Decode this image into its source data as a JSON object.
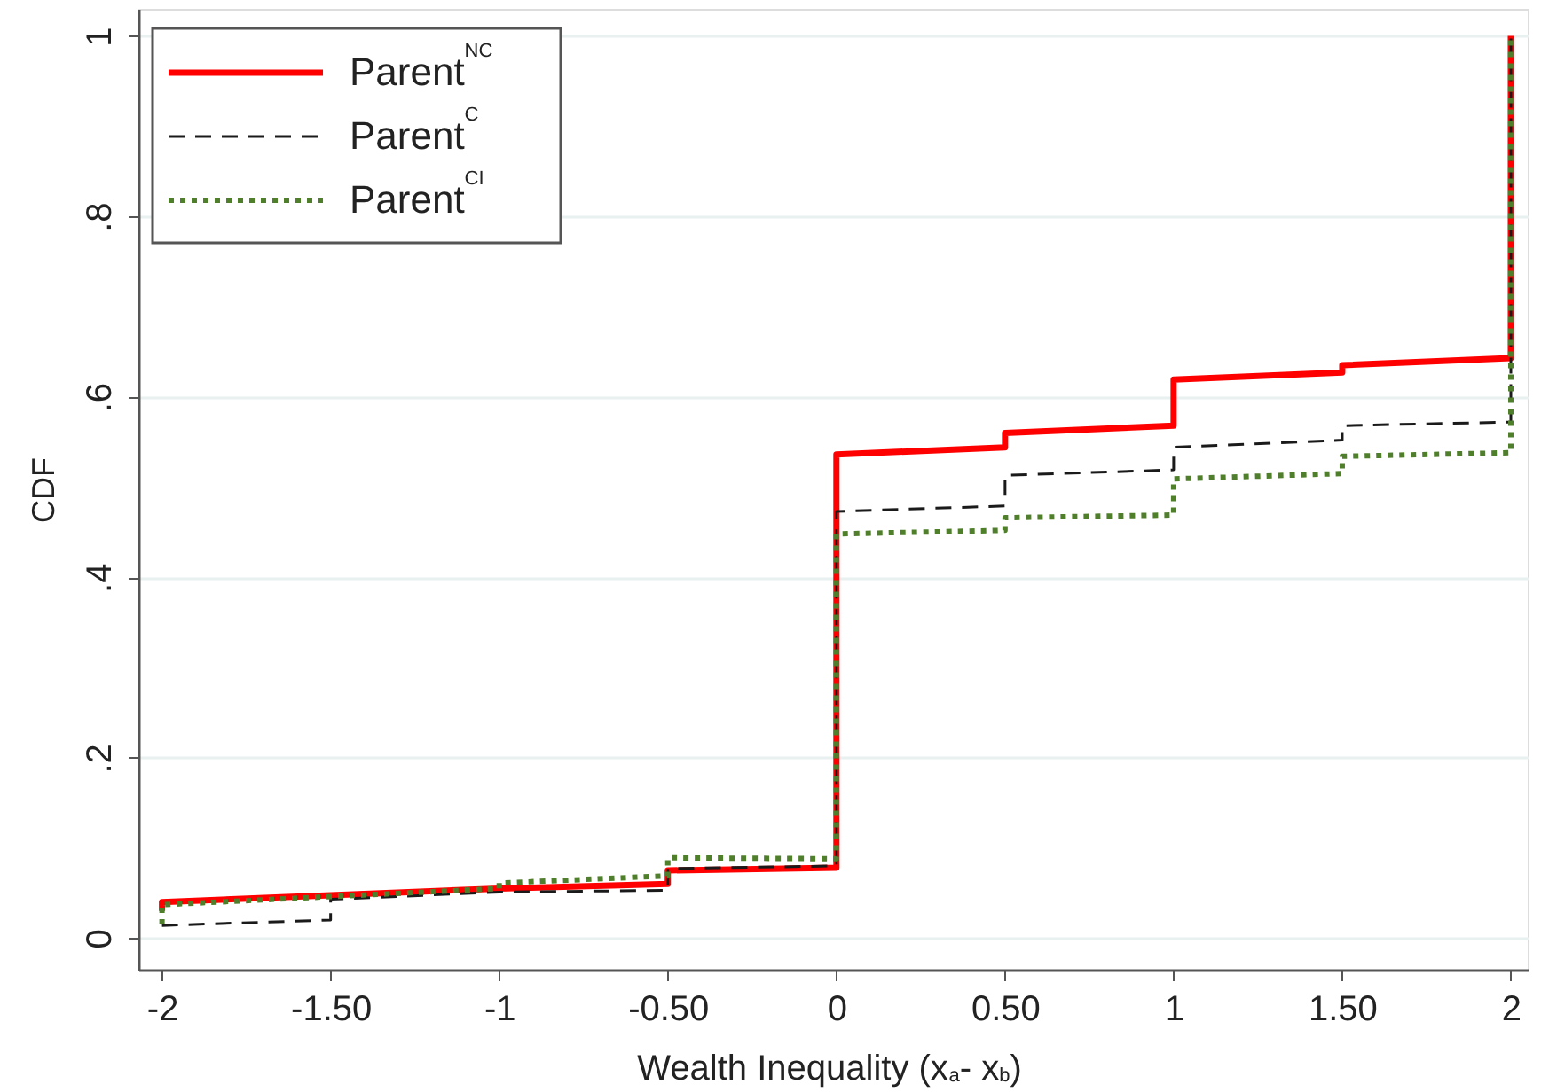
{
  "chart_data": {
    "type": "line",
    "xlabel": "Wealth Inequality (x$_{a}$- x$_{b}$)",
    "ylabel": "CDF",
    "xlim": [
      -2.07,
      2.05
    ],
    "ylim": [
      -0.035,
      1.03
    ],
    "xticks": [
      -2,
      {
        "value": -1.5,
        "label": "-1.50"
      },
      -1,
      {
        "value": -0.5,
        "label": "-0.50"
      },
      0,
      {
        "value": 0.5,
        "label": "0.50"
      },
      1,
      {
        "value": 1.5,
        "label": "1.50"
      },
      2
    ],
    "yticks": [
      0,
      {
        "value": 0.2,
        "label": ".2"
      },
      {
        "value": 0.4,
        "label": ".4"
      },
      {
        "value": 0.6,
        "label": ".6"
      },
      {
        "value": 0.8,
        "label": ".8"
      },
      1
    ],
    "grid": "y",
    "legend": "top left",
    "marker": "none",
    "series": [
      {
        "name": "Parent$^{NC}$",
        "color": "#ff0000",
        "line_style": "solid",
        "x": [
          -2,
          -2,
          -1,
          -0.5,
          -0.5,
          0,
          0,
          0.5,
          0.5,
          1,
          1,
          1.5,
          1.5,
          2,
          2
        ],
        "values": [
          0.03,
          0.04,
          0.055,
          0.06,
          0.075,
          0.078,
          0.536,
          0.544,
          0.56,
          0.568,
          0.619,
          0.627,
          0.635,
          0.643,
          1
        ]
      },
      {
        "name": "Parent$^{C}$",
        "color": "#1a1a1a",
        "line_style": "dashed",
        "x": [
          -2,
          -1.5,
          -1.5,
          -1,
          -0.5,
          -0.5,
          0,
          0,
          0.5,
          0.5,
          1,
          1,
          1.5,
          1.5,
          2,
          2
        ],
        "values": [
          0.014,
          0.02,
          0.043,
          0.051,
          0.053,
          0.077,
          0.08,
          0.473,
          0.479,
          0.513,
          0.519,
          0.544,
          0.552,
          0.568,
          0.572,
          1
        ]
      },
      {
        "name": "Parent$^{CI}$",
        "color": "#4f7f2a",
        "line_style": "dotted",
        "x": [
          -2,
          -2,
          -1,
          -1,
          -0.5,
          -0.5,
          0,
          0,
          0.5,
          0.5,
          1,
          1,
          1.5,
          1.5,
          2,
          2
        ],
        "values": [
          0.015,
          0.037,
          0.055,
          0.061,
          0.069,
          0.089,
          0.088,
          0.448,
          0.452,
          0.466,
          0.469,
          0.509,
          0.515,
          0.534,
          0.538,
          1
        ]
      }
    ]
  }
}
